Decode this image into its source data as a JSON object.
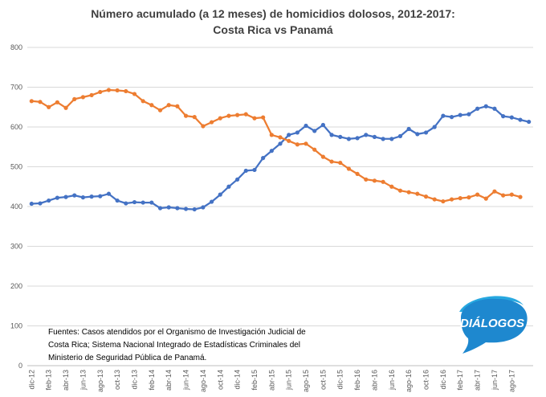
{
  "chart_data": {
    "type": "line",
    "title_line1": "Número acumulado  (a 12 meses) de homicidios  dolosos,  2012-2017:",
    "title_line2": "Costa  Rica vs Panamá",
    "ylim": [
      0,
      800
    ],
    "yticks": [
      "0",
      "100",
      "200",
      "300",
      "400",
      "500",
      "600",
      "700",
      "800"
    ],
    "grid": true,
    "legend": "none",
    "x_labels": [
      "dic-12",
      "feb-13",
      "abr-13",
      "jun-13",
      "ago-13",
      "oct-13",
      "dic-13",
      "feb-14",
      "abr-14",
      "jun-14",
      "ago-14",
      "oct-14",
      "dic-14",
      "feb-15",
      "abr-15",
      "jun-15",
      "ago-15",
      "oct-15",
      "dic-15",
      "feb-16",
      "abr-16",
      "jun-16",
      "ago-16",
      "oct-16",
      "dic-16",
      "feb-17",
      "abr-17",
      "jun-17",
      "ago-17"
    ],
    "series": [
      {
        "color": "#4472C4",
        "values": [
          407,
          408,
          415,
          422,
          424,
          428,
          423,
          425,
          426,
          432,
          415,
          408,
          411,
          410,
          410,
          396,
          398,
          396,
          394,
          393,
          398,
          412,
          430,
          450,
          468,
          490,
          492,
          522,
          540,
          558,
          580,
          586,
          603,
          590,
          605,
          580,
          575,
          570,
          572,
          580,
          575,
          570,
          570,
          577,
          595,
          582,
          586,
          600,
          628,
          625,
          630,
          632,
          646,
          652,
          646,
          627,
          624,
          618,
          613
        ]
      },
      {
        "color": "#ED7D31",
        "values": [
          665,
          663,
          650,
          662,
          648,
          670,
          675,
          680,
          688,
          693,
          692,
          690,
          683,
          665,
          655,
          642,
          655,
          652,
          628,
          625,
          602,
          612,
          622,
          628,
          630,
          632,
          622,
          624,
          580,
          574,
          565,
          556,
          558,
          543,
          525,
          513,
          510,
          495,
          482,
          468,
          465,
          462,
          450,
          440,
          436,
          432,
          425,
          418,
          413,
          418,
          421,
          423,
          430,
          420,
          438,
          428,
          430,
          424
        ]
      }
    ],
    "source_lines": [
      "Fuentes: Casos atendidos por el Organismo de Investigación Judicial de",
      "Costa Rica; Sistema Nacional Integrado de Estadísticas Criminales del",
      "Ministerio de Seguridad Pública de Panamá."
    ],
    "logo_text": "DIÁLOGOS"
  }
}
